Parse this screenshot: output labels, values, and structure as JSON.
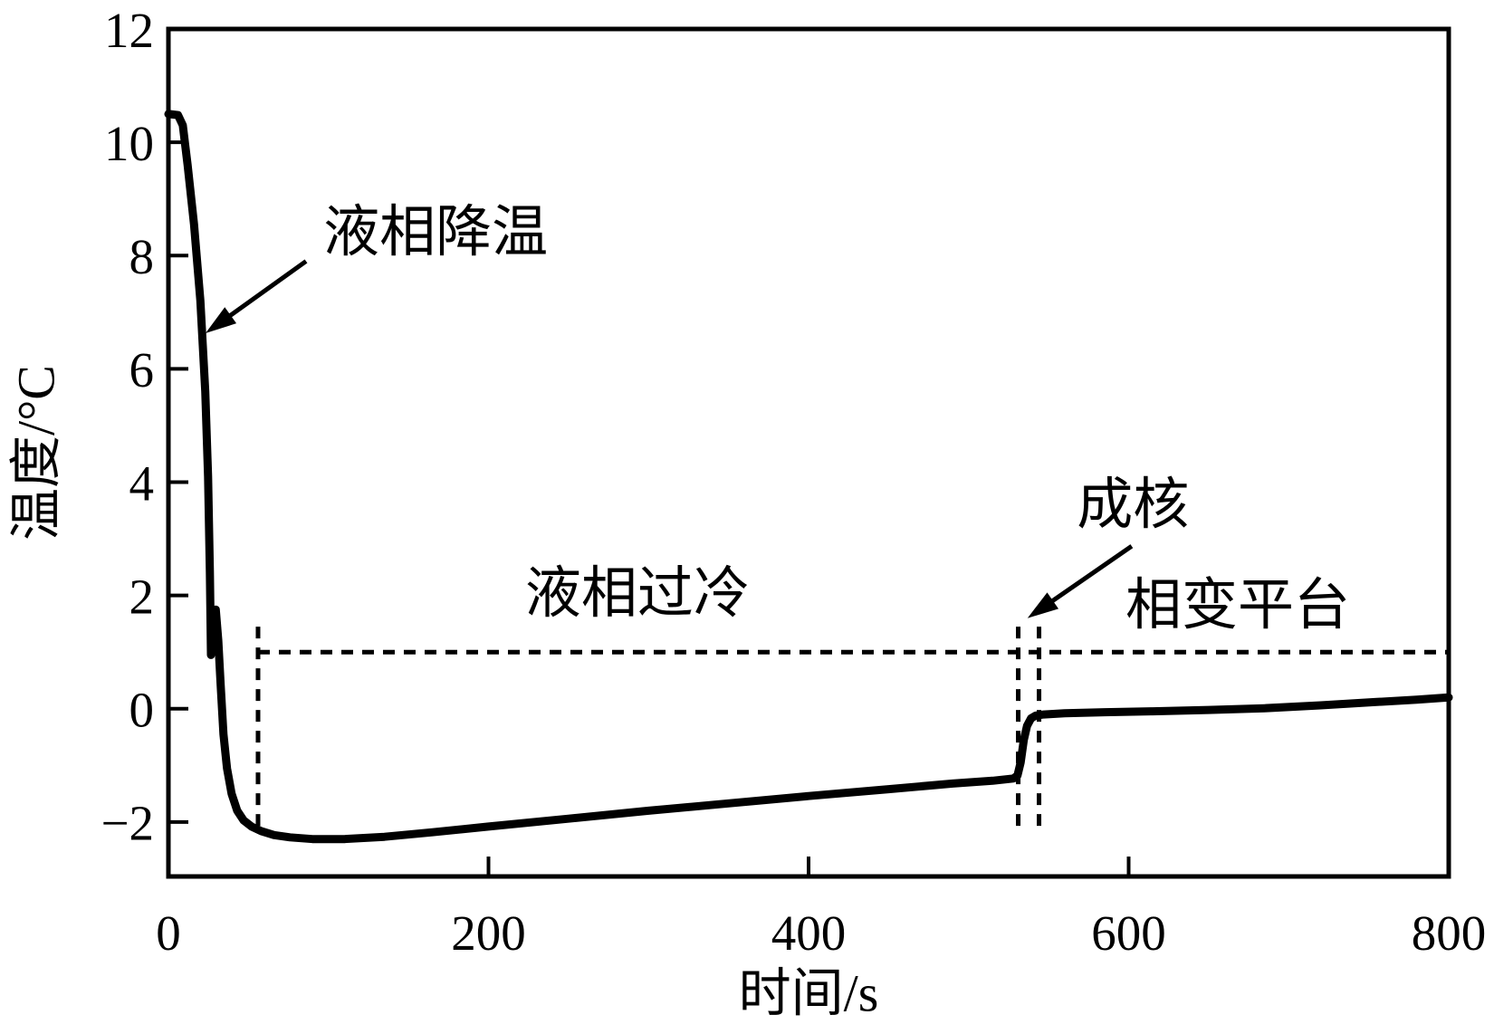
{
  "figure": {
    "background_color": "#ffffff",
    "line_color": "#000000"
  },
  "chart_data": {
    "type": "line",
    "title": "",
    "xlabel": "时间/s",
    "ylabel": "温度/°C",
    "xlim": [
      0,
      800
    ],
    "ylim": [
      -2.96,
      12
    ],
    "grid": false,
    "legend": "none",
    "xticks": [
      {
        "value": 0,
        "label": "0"
      },
      {
        "value": 200,
        "label": "200"
      },
      {
        "value": 400,
        "label": "400"
      },
      {
        "value": 600,
        "label": "600"
      },
      {
        "value": 800,
        "label": "800"
      }
    ],
    "yticks": [
      {
        "value": -2,
        "label": "−2"
      },
      {
        "value": 0,
        "label": "0"
      },
      {
        "value": 2,
        "label": "2"
      },
      {
        "value": 4,
        "label": "4"
      },
      {
        "value": 6,
        "label": "6"
      },
      {
        "value": 8,
        "label": "8"
      },
      {
        "value": 10,
        "label": "10"
      },
      {
        "value": 12,
        "label": "12"
      }
    ],
    "series": [
      {
        "name": "cooling-curve",
        "points": [
          [
            0,
            10.5
          ],
          [
            6,
            10.48
          ],
          [
            9,
            10.3
          ],
          [
            12,
            9.6
          ],
          [
            16,
            8.55
          ],
          [
            20,
            7.2
          ],
          [
            23,
            5.6
          ],
          [
            24.8,
            4.1
          ],
          [
            25.9,
            2.4
          ],
          [
            26.6,
            0.95
          ],
          [
            27.6,
            1.3
          ],
          [
            29.6,
            1.75
          ],
          [
            31.2,
            1.2
          ],
          [
            32.6,
            0.45
          ],
          [
            34.4,
            -0.45
          ],
          [
            36.6,
            -1.05
          ],
          [
            39.5,
            -1.5
          ],
          [
            43,
            -1.8
          ],
          [
            47,
            -1.97
          ],
          [
            52,
            -2.08
          ],
          [
            58,
            -2.16
          ],
          [
            66,
            -2.23
          ],
          [
            76,
            -2.27
          ],
          [
            90,
            -2.3
          ],
          [
            110,
            -2.3
          ],
          [
            135,
            -2.26
          ],
          [
            165,
            -2.18
          ],
          [
            200,
            -2.08
          ],
          [
            250,
            -1.94
          ],
          [
            300,
            -1.8
          ],
          [
            350,
            -1.67
          ],
          [
            400,
            -1.54
          ],
          [
            450,
            -1.42
          ],
          [
            490,
            -1.32
          ],
          [
            515,
            -1.27
          ],
          [
            528,
            -1.23
          ],
          [
            530.5,
            -1.18
          ],
          [
            532.5,
            -0.95
          ],
          [
            534.5,
            -0.55
          ],
          [
            536.5,
            -0.3
          ],
          [
            539,
            -0.17
          ],
          [
            542,
            -0.12
          ],
          [
            547,
            -0.1
          ],
          [
            560,
            -0.08
          ],
          [
            585,
            -0.06
          ],
          [
            615,
            -0.045
          ],
          [
            650,
            -0.02
          ],
          [
            685,
            0.01
          ],
          [
            720,
            0.06
          ],
          [
            755,
            0.12
          ],
          [
            780,
            0.16
          ],
          [
            800,
            0.2
          ]
        ]
      }
    ],
    "reference_lines": {
      "horizontal_dashed": {
        "temperature": 1.0,
        "t_start": 56,
        "t_end": 800
      },
      "vertical_dashed": [
        {
          "name": "supercool-start",
          "t": 56,
          "T_top": 1.45,
          "T_bottom": -2.08
        },
        {
          "name": "nucleation-start",
          "t": 531,
          "T_top": 1.45,
          "T_bottom": -2.13
        },
        {
          "name": "nucleation-end",
          "t": 544,
          "T_top": 1.45,
          "T_bottom": -2.13
        }
      ]
    },
    "annotations": [
      {
        "id": "liquid-cooling",
        "text": "液相降温",
        "t": 167,
        "T": 8.4,
        "arrow": {
          "from": [
            86,
            7.9
          ],
          "to": [
            23.2,
            6.63
          ]
        }
      },
      {
        "id": "supercooling",
        "text": "液相过冷",
        "t": 293,
        "T": 2.03,
        "arrow": null
      },
      {
        "id": "nucleation",
        "text": "成核",
        "t": 602.7,
        "T": 3.59,
        "arrow": {
          "from": [
            601.9,
            2.87
          ],
          "to": [
            536.8,
            1.6
          ]
        }
      },
      {
        "id": "phase-plateau",
        "text": "相变平台",
        "t": 668.2,
        "T": 1.82,
        "arrow": null
      }
    ]
  }
}
